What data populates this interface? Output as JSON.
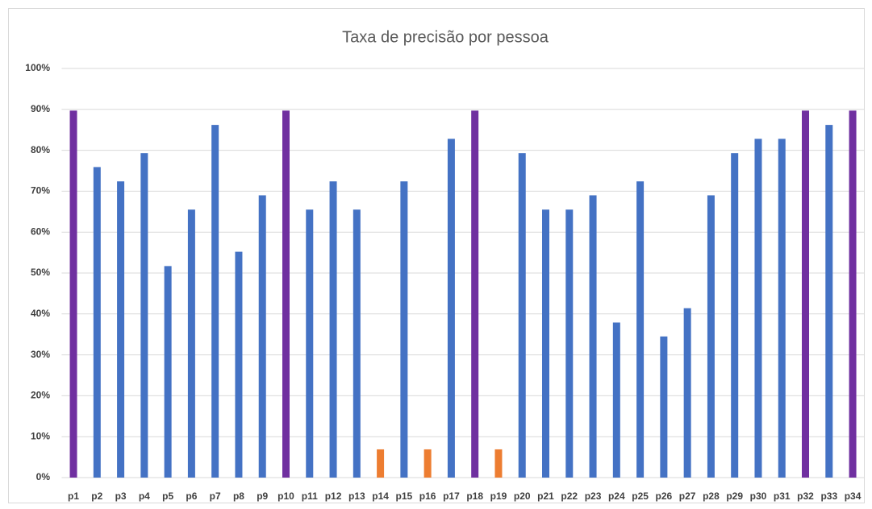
{
  "chart_data": {
    "type": "bar",
    "title": "Taxa de precisão por pessoa",
    "categories": [
      "p1",
      "p2",
      "p3",
      "p4",
      "p5",
      "p6",
      "p7",
      "p8",
      "p9",
      "p10",
      "p11",
      "p12",
      "p13",
      "p14",
      "p15",
      "p16",
      "p17",
      "p18",
      "p19",
      "p20",
      "p21",
      "p22",
      "p23",
      "p24",
      "p25",
      "p26",
      "p27",
      "p28",
      "p29",
      "p30",
      "p31",
      "p32",
      "p33",
      "p34"
    ],
    "values": [
      89.7,
      75.9,
      72.4,
      79.3,
      51.7,
      65.5,
      86.2,
      55.2,
      69.0,
      89.7,
      65.5,
      72.4,
      65.5,
      6.9,
      72.4,
      6.9,
      82.8,
      89.7,
      6.9,
      79.3,
      65.5,
      65.5,
      69.0,
      37.9,
      72.4,
      34.5,
      41.4,
      69.0,
      79.3,
      82.8,
      82.8,
      89.7,
      86.2,
      89.7
    ],
    "colors": [
      "#7030a0",
      "#4472c4",
      "#4472c4",
      "#4472c4",
      "#4472c4",
      "#4472c4",
      "#4472c4",
      "#4472c4",
      "#4472c4",
      "#7030a0",
      "#4472c4",
      "#4472c4",
      "#4472c4",
      "#ed7d31",
      "#4472c4",
      "#ed7d31",
      "#4472c4",
      "#7030a0",
      "#ed7d31",
      "#4472c4",
      "#4472c4",
      "#4472c4",
      "#4472c4",
      "#4472c4",
      "#4472c4",
      "#4472c4",
      "#4472c4",
      "#4472c4",
      "#4472c4",
      "#4472c4",
      "#4472c4",
      "#7030a0",
      "#4472c4",
      "#7030a0"
    ],
    "ylim": [
      0,
      100
    ],
    "yticks": [
      {
        "value": 0,
        "label": "0%"
      },
      {
        "value": 10,
        "label": "10%"
      },
      {
        "value": 20,
        "label": "20%"
      },
      {
        "value": 30,
        "label": "30%"
      },
      {
        "value": 40,
        "label": "40%"
      },
      {
        "value": 50,
        "label": "50%"
      },
      {
        "value": 60,
        "label": "60%"
      },
      {
        "value": 70,
        "label": "70%"
      },
      {
        "value": 80,
        "label": "80%"
      },
      {
        "value": 90,
        "label": "90%"
      },
      {
        "value": 100,
        "label": "100%"
      }
    ],
    "grid": true
  }
}
